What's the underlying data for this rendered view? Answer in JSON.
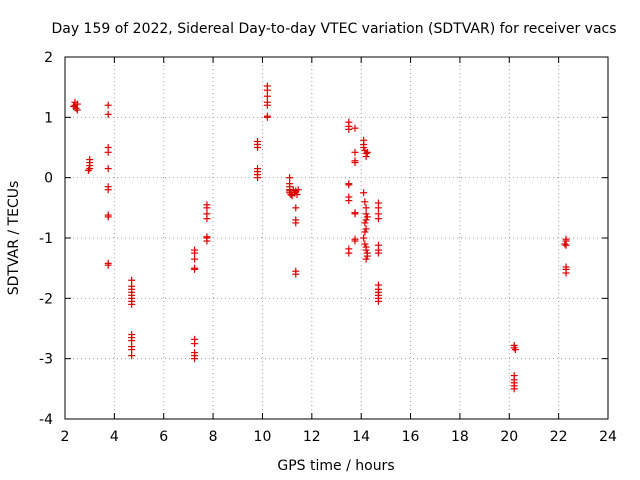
{
  "chart_data": {
    "type": "scatter",
    "title": "Day 159 of 2022, Sidereal Day-to-day VTEC variation (SDTVAR) for receiver vacs",
    "xlabel": "GPS time / hours",
    "ylabel": "SDTVAR / TECUs",
    "xlim": [
      2,
      24
    ],
    "ylim": [
      -4,
      2
    ],
    "xticks": [
      2,
      4,
      6,
      8,
      10,
      12,
      14,
      16,
      18,
      20,
      22,
      24
    ],
    "yticks": [
      -4,
      -3,
      -2,
      -1,
      0,
      1,
      2
    ],
    "xtick_labels": [
      "2",
      "4",
      "6",
      "8",
      "10",
      "12",
      "14",
      "16",
      "18",
      "20",
      "22",
      "24"
    ],
    "ytick_labels": [
      "-4",
      "-3",
      "-2",
      "-1",
      "0",
      "1",
      "2"
    ],
    "grid": true,
    "marker": "plus",
    "marker_color": "#e00000",
    "series": [
      {
        "name": "SDTVAR",
        "points": [
          [
            2.4,
            1.25
          ],
          [
            2.4,
            1.2
          ],
          [
            2.45,
            1.15
          ],
          [
            2.5,
            1.12
          ],
          [
            2.35,
            1.18
          ],
          [
            2.5,
            1.22
          ],
          [
            3.0,
            0.3
          ],
          [
            3.0,
            0.25
          ],
          [
            3.0,
            0.2
          ],
          [
            3.0,
            0.15
          ],
          [
            2.95,
            0.12
          ],
          [
            3.75,
            1.2
          ],
          [
            3.75,
            1.05
          ],
          [
            3.75,
            0.5
          ],
          [
            3.75,
            0.42
          ],
          [
            3.75,
            0.15
          ],
          [
            3.75,
            -0.15
          ],
          [
            3.75,
            -0.2
          ],
          [
            3.75,
            -0.62
          ],
          [
            3.75,
            -0.65
          ],
          [
            3.75,
            -1.42
          ],
          [
            3.75,
            -1.45
          ],
          [
            4.7,
            -1.7
          ],
          [
            4.7,
            -1.8
          ],
          [
            4.7,
            -1.85
          ],
          [
            4.7,
            -1.9
          ],
          [
            4.7,
            -1.95
          ],
          [
            4.7,
            -2.0
          ],
          [
            4.7,
            -2.05
          ],
          [
            4.7,
            -2.1
          ],
          [
            4.7,
            -2.6
          ],
          [
            4.7,
            -2.65
          ],
          [
            4.7,
            -2.7
          ],
          [
            4.7,
            -2.8
          ],
          [
            4.7,
            -2.85
          ],
          [
            4.7,
            -2.95
          ],
          [
            7.25,
            -1.2
          ],
          [
            7.25,
            -1.25
          ],
          [
            7.25,
            -1.35
          ],
          [
            7.25,
            -1.5
          ],
          [
            7.25,
            -1.52
          ],
          [
            7.25,
            -2.68
          ],
          [
            7.25,
            -2.75
          ],
          [
            7.25,
            -2.9
          ],
          [
            7.25,
            -2.95
          ],
          [
            7.25,
            -3.0
          ],
          [
            7.75,
            -0.45
          ],
          [
            7.75,
            -0.5
          ],
          [
            7.75,
            -0.6
          ],
          [
            7.75,
            -0.68
          ],
          [
            7.75,
            -0.98
          ],
          [
            7.75,
            -1.0
          ],
          [
            7.75,
            -1.05
          ],
          [
            9.8,
            0.6
          ],
          [
            9.8,
            0.55
          ],
          [
            9.8,
            0.5
          ],
          [
            9.8,
            0.15
          ],
          [
            9.8,
            0.1
          ],
          [
            9.8,
            0.05
          ],
          [
            9.8,
            0.0
          ],
          [
            10.2,
            1.52
          ],
          [
            10.2,
            1.45
          ],
          [
            10.2,
            1.35
          ],
          [
            10.2,
            1.25
          ],
          [
            10.2,
            1.2
          ],
          [
            10.2,
            1.02
          ],
          [
            10.2,
            1.0
          ],
          [
            11.1,
            0.0
          ],
          [
            11.1,
            -0.1
          ],
          [
            11.1,
            -0.15
          ],
          [
            11.1,
            -0.2
          ],
          [
            11.1,
            -0.22
          ],
          [
            11.1,
            -0.25
          ],
          [
            11.15,
            -0.28
          ],
          [
            11.2,
            -0.3
          ],
          [
            11.25,
            -0.2
          ],
          [
            11.3,
            -0.25
          ],
          [
            11.35,
            -0.22
          ],
          [
            11.4,
            -0.28
          ],
          [
            11.45,
            -0.2
          ],
          [
            11.35,
            -0.5
          ],
          [
            11.35,
            -0.7
          ],
          [
            11.35,
            -0.75
          ],
          [
            11.35,
            -1.55
          ],
          [
            11.35,
            -1.6
          ],
          [
            13.5,
            0.92
          ],
          [
            13.5,
            0.85
          ],
          [
            13.5,
            0.8
          ],
          [
            13.75,
            0.82
          ],
          [
            13.75,
            0.42
          ],
          [
            13.75,
            0.28
          ],
          [
            13.75,
            0.25
          ],
          [
            13.5,
            -0.1
          ],
          [
            13.5,
            -0.12
          ],
          [
            13.5,
            -0.32
          ],
          [
            13.5,
            -0.38
          ],
          [
            13.75,
            -0.58
          ],
          [
            13.75,
            -0.6
          ],
          [
            13.5,
            -1.18
          ],
          [
            13.5,
            -1.25
          ],
          [
            13.75,
            -1.02
          ],
          [
            13.75,
            -1.05
          ],
          [
            14.1,
            0.62
          ],
          [
            14.1,
            0.55
          ],
          [
            14.1,
            0.5
          ],
          [
            14.15,
            0.45
          ],
          [
            14.2,
            0.4
          ],
          [
            14.25,
            0.42
          ],
          [
            14.2,
            0.35
          ],
          [
            14.1,
            -0.25
          ],
          [
            14.15,
            -0.4
          ],
          [
            14.2,
            -0.5
          ],
          [
            14.2,
            -0.6
          ],
          [
            14.25,
            -0.65
          ],
          [
            14.2,
            -0.7
          ],
          [
            14.15,
            -0.75
          ],
          [
            14.2,
            -0.85
          ],
          [
            14.15,
            -0.9
          ],
          [
            14.1,
            -1.0
          ],
          [
            14.15,
            -1.1
          ],
          [
            14.2,
            -1.15
          ],
          [
            14.2,
            -1.2
          ],
          [
            14.25,
            -1.25
          ],
          [
            14.25,
            -1.3
          ],
          [
            14.2,
            -1.35
          ],
          [
            14.7,
            -0.42
          ],
          [
            14.7,
            -0.5
          ],
          [
            14.7,
            -0.6
          ],
          [
            14.7,
            -0.68
          ],
          [
            14.7,
            -1.12
          ],
          [
            14.7,
            -1.2
          ],
          [
            14.7,
            -1.25
          ],
          [
            14.7,
            -1.78
          ],
          [
            14.7,
            -1.85
          ],
          [
            14.7,
            -1.9
          ],
          [
            14.7,
            -1.95
          ],
          [
            14.7,
            -2.0
          ],
          [
            14.7,
            -2.05
          ],
          [
            20.2,
            -2.78
          ],
          [
            20.2,
            -2.82
          ],
          [
            20.25,
            -2.85
          ],
          [
            20.2,
            -3.28
          ],
          [
            20.2,
            -3.35
          ],
          [
            20.2,
            -3.4
          ],
          [
            20.2,
            -3.45
          ],
          [
            20.2,
            -3.5
          ],
          [
            22.3,
            -1.02
          ],
          [
            22.3,
            -1.05
          ],
          [
            22.25,
            -1.1
          ],
          [
            22.3,
            -1.12
          ],
          [
            22.3,
            -1.48
          ],
          [
            22.3,
            -1.52
          ],
          [
            22.3,
            -1.58
          ]
        ]
      }
    ]
  }
}
